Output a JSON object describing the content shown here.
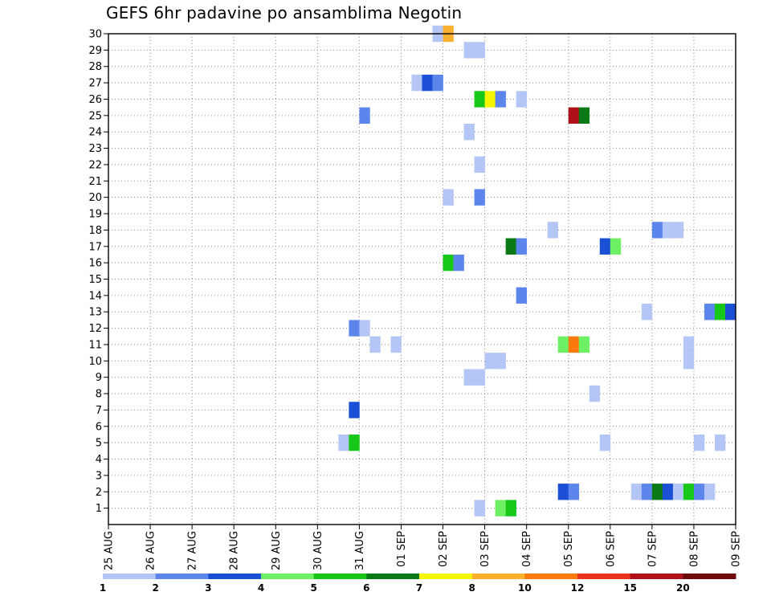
{
  "chart_data": {
    "type": "heatmap",
    "title": "GEFS 6hr padavine po ansamblima Negotin",
    "y_ticks": [
      "1",
      "2",
      "3",
      "4",
      "5",
      "6",
      "7",
      "8",
      "9",
      "10",
      "11",
      "12",
      "13",
      "14",
      "15",
      "16",
      "17",
      "18",
      "19",
      "20",
      "21",
      "22",
      "23",
      "24",
      "25",
      "26",
      "27",
      "28",
      "29",
      "30"
    ],
    "x_ticks": [
      "25 AUG",
      "26 AUG",
      "27 AUG",
      "28 AUG",
      "29 AUG",
      "30 AUG",
      "31 AUG",
      "01 SEP",
      "02 SEP",
      "03 SEP",
      "04 SEP",
      "05 SEP",
      "06 SEP",
      "07 SEP",
      "08 SEP",
      "09 SEP"
    ],
    "x_range_days": [
      0,
      15
    ],
    "y_range": [
      0,
      30
    ],
    "grid": true,
    "legend": {
      "placement": "bottom",
      "labels": [
        "1",
        "2",
        "3",
        "4",
        "5",
        "6",
        "7",
        "8",
        "10",
        "12",
        "15",
        "20"
      ],
      "colors": [
        "#b3c6f5",
        "#5c86ec",
        "#1a4fd6",
        "#6ef064",
        "#18c818",
        "#0a7a16",
        "#f5f500",
        "#fbb030",
        "#fa7a0e",
        "#e8321c",
        "#b0101a",
        "#6e0a0a"
      ]
    },
    "cells": [
      {
        "member": 30,
        "day": 7.75,
        "level": 1
      },
      {
        "member": 30,
        "day": 8.0,
        "level": 8
      },
      {
        "member": 29,
        "day": 8.5,
        "level": 1
      },
      {
        "member": 29,
        "day": 8.75,
        "level": 1
      },
      {
        "member": 27,
        "day": 7.25,
        "level": 1
      },
      {
        "member": 27,
        "day": 7.5,
        "level": 3
      },
      {
        "member": 27,
        "day": 7.75,
        "level": 2
      },
      {
        "member": 26,
        "day": 8.75,
        "level": 5
      },
      {
        "member": 26,
        "day": 9.0,
        "level": 7
      },
      {
        "member": 26,
        "day": 9.25,
        "level": 2
      },
      {
        "member": 26,
        "day": 9.75,
        "level": 1
      },
      {
        "member": 25,
        "day": 6.0,
        "level": 2
      },
      {
        "member": 25,
        "day": 11.0,
        "level": 11
      },
      {
        "member": 25,
        "day": 11.25,
        "level": 6
      },
      {
        "member": 24,
        "day": 8.5,
        "level": 1
      },
      {
        "member": 22,
        "day": 8.75,
        "level": 1
      },
      {
        "member": 20,
        "day": 8.0,
        "level": 1
      },
      {
        "member": 20,
        "day": 8.75,
        "level": 2
      },
      {
        "member": 18,
        "day": 10.5,
        "level": 1
      },
      {
        "member": 18,
        "day": 13.0,
        "level": 2
      },
      {
        "member": 18,
        "day": 13.25,
        "level": 1
      },
      {
        "member": 18,
        "day": 13.5,
        "level": 1
      },
      {
        "member": 17,
        "day": 9.5,
        "level": 6
      },
      {
        "member": 17,
        "day": 9.75,
        "level": 2
      },
      {
        "member": 17,
        "day": 11.75,
        "level": 3
      },
      {
        "member": 17,
        "day": 12.0,
        "level": 4
      },
      {
        "member": 16,
        "day": 8.0,
        "level": 5
      },
      {
        "member": 16,
        "day": 8.25,
        "level": 2
      },
      {
        "member": 14,
        "day": 9.75,
        "level": 2
      },
      {
        "member": 13,
        "day": 12.75,
        "level": 1
      },
      {
        "member": 13,
        "day": 14.25,
        "level": 2
      },
      {
        "member": 13,
        "day": 14.5,
        "level": 5
      },
      {
        "member": 13,
        "day": 14.75,
        "level": 3
      },
      {
        "member": 12,
        "day": 5.75,
        "level": 2
      },
      {
        "member": 12,
        "day": 6.0,
        "level": 1
      },
      {
        "member": 11,
        "day": 6.25,
        "level": 1
      },
      {
        "member": 11,
        "day": 6.75,
        "level": 1
      },
      {
        "member": 11,
        "day": 10.75,
        "level": 4
      },
      {
        "member": 11,
        "day": 11.0,
        "level": 9
      },
      {
        "member": 11,
        "day": 11.25,
        "level": 4
      },
      {
        "member": 11,
        "day": 13.75,
        "level": 1
      },
      {
        "member": 10,
        "day": 9.0,
        "level": 1
      },
      {
        "member": 10,
        "day": 9.25,
        "level": 1
      },
      {
        "member": 10,
        "day": 13.75,
        "level": 1
      },
      {
        "member": 9,
        "day": 8.5,
        "level": 1
      },
      {
        "member": 9,
        "day": 8.75,
        "level": 1
      },
      {
        "member": 8,
        "day": 11.5,
        "level": 1
      },
      {
        "member": 7,
        "day": 5.75,
        "level": 3
      },
      {
        "member": 5,
        "day": 5.5,
        "level": 1
      },
      {
        "member": 5,
        "day": 5.75,
        "level": 5
      },
      {
        "member": 5,
        "day": 11.75,
        "level": 1
      },
      {
        "member": 5,
        "day": 14.0,
        "level": 1
      },
      {
        "member": 5,
        "day": 14.5,
        "level": 1
      },
      {
        "member": 2,
        "day": 10.75,
        "level": 3
      },
      {
        "member": 2,
        "day": 11.0,
        "level": 2
      },
      {
        "member": 2,
        "day": 12.5,
        "level": 1
      },
      {
        "member": 2,
        "day": 12.75,
        "level": 2
      },
      {
        "member": 2,
        "day": 13.0,
        "level": 6
      },
      {
        "member": 2,
        "day": 13.25,
        "level": 3
      },
      {
        "member": 2,
        "day": 13.5,
        "level": 1
      },
      {
        "member": 2,
        "day": 13.75,
        "level": 5
      },
      {
        "member": 2,
        "day": 14.0,
        "level": 2
      },
      {
        "member": 2,
        "day": 14.25,
        "level": 1
      },
      {
        "member": 1,
        "day": 8.75,
        "level": 1
      },
      {
        "member": 1,
        "day": 9.25,
        "level": 4
      },
      {
        "member": 1,
        "day": 9.5,
        "level": 5
      }
    ]
  }
}
